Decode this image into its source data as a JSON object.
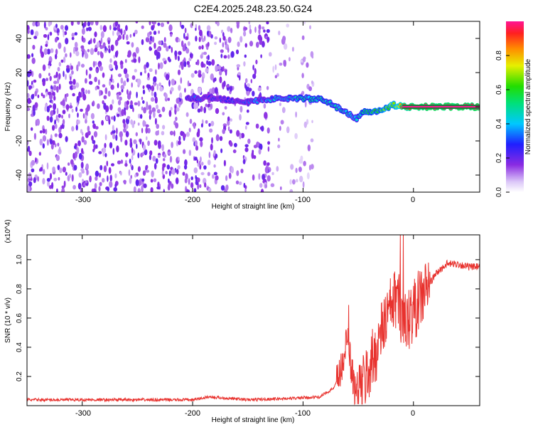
{
  "title": "C2E4.2025.248.23.50.G24",
  "chart_data": [
    {
      "type": "heatmap",
      "name": "spectrogram",
      "xlabel": "Height of straight line (km)",
      "ylabel": "Frequency (Hz)",
      "xlim": [
        -350,
        60
      ],
      "ylim": [
        -50,
        50
      ],
      "xticks": [
        -300,
        -200,
        -100,
        0
      ],
      "yticks": [
        -40,
        -20,
        0,
        20,
        40
      ],
      "colorbar": {
        "label": "Normalized spectral amplitude",
        "range": [
          0,
          1
        ],
        "ticks": [
          "0.0",
          "0.2",
          "0.4",
          "0.6",
          "0.8"
        ],
        "tick_values": [
          0,
          0.2,
          0.4,
          0.6,
          0.8
        ]
      },
      "signal_track": [
        {
          "x": -205,
          "freq": 5,
          "amp": 0.3
        },
        {
          "x": -180,
          "freq": 5,
          "amp": 0.25
        },
        {
          "x": -150,
          "freq": 3,
          "amp": 0.3
        },
        {
          "x": -120,
          "freq": 5,
          "amp": 0.4
        },
        {
          "x": -100,
          "freq": 5,
          "amp": 0.45
        },
        {
          "x": -80,
          "freq": 4,
          "amp": 0.5
        },
        {
          "x": -70,
          "freq": 0,
          "amp": 0.45
        },
        {
          "x": -60,
          "freq": -4,
          "amp": 0.45
        },
        {
          "x": -52,
          "freq": -7,
          "amp": 0.4
        },
        {
          "x": -45,
          "freq": -3,
          "amp": 0.5
        },
        {
          "x": -30,
          "freq": -2,
          "amp": 0.6
        },
        {
          "x": -18,
          "freq": 1,
          "amp": 0.7
        },
        {
          "x": -10,
          "freq": 0,
          "amp": 0.9
        },
        {
          "x": 0,
          "freq": 0,
          "amp": 1.0
        },
        {
          "x": 60,
          "freq": 0,
          "amp": 1.0
        }
      ]
    },
    {
      "type": "line",
      "name": "snr",
      "xlabel": "Height of straight line (km)",
      "ylabel": "SNR (10 * v/v)",
      "y_multiplier": "(x10^4)",
      "xlim": [
        -350,
        60
      ],
      "ylim": [
        0,
        1.17
      ],
      "xticks": [
        -300,
        -200,
        -100,
        0
      ],
      "yticks": [
        0.2,
        0.4,
        0.6,
        0.8,
        1.0
      ],
      "ytick_labels": [
        "0.2",
        "0.4",
        "0.6",
        "0.8",
        "1.0"
      ],
      "series_color": "#e8322e",
      "x": [
        -350,
        -200,
        -185,
        -150,
        -110,
        -85,
        -72,
        -65,
        -60,
        -57,
        -53,
        -45,
        -35,
        -25,
        -15,
        -8,
        0,
        10,
        20,
        30,
        40,
        50,
        60
      ],
      "values": [
        0.04,
        0.04,
        0.06,
        0.04,
        0.05,
        0.06,
        0.12,
        0.25,
        0.5,
        0.3,
        0.1,
        0.15,
        0.35,
        0.6,
        0.75,
        0.55,
        0.65,
        0.78,
        0.9,
        0.97,
        0.97,
        0.95,
        0.95
      ]
    }
  ],
  "top_plot": {
    "xtick_labels": [
      "-300",
      "-200",
      "-100",
      "0"
    ],
    "ytick_labels": [
      "-40",
      "-20",
      "0",
      "20",
      "40"
    ]
  },
  "bottom_plot": {
    "xtick_labels": [
      "-300",
      "-200",
      "-100",
      "0"
    ]
  }
}
